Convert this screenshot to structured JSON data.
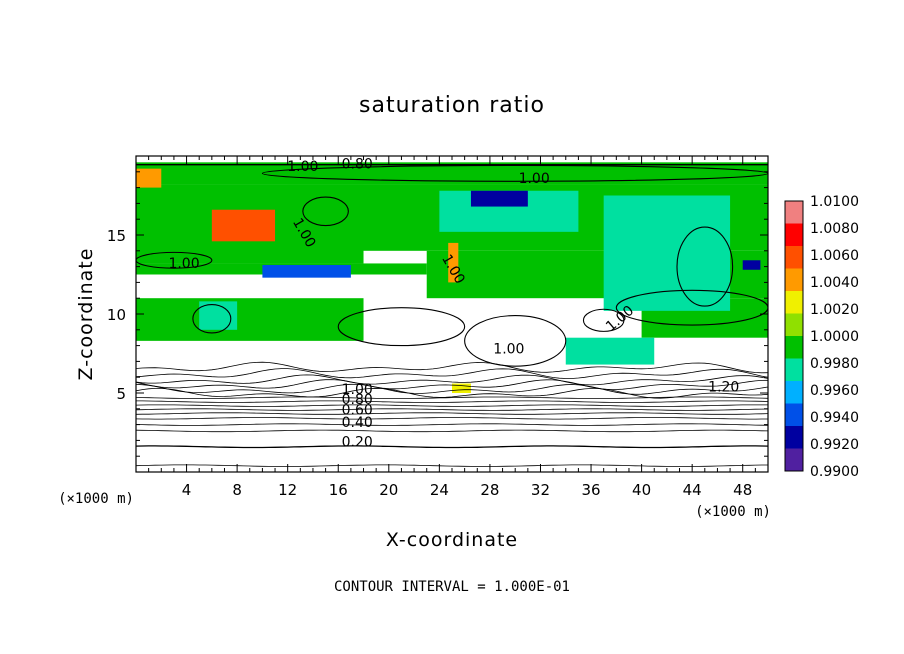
{
  "chart_data": {
    "type": "heatmap",
    "title": "saturation ratio",
    "xlabel": "X-coordinate",
    "ylabel": "Z-coordinate",
    "x_unit": "(×1000 m)",
    "z_unit": "(×1000 m)",
    "xlim": [
      0,
      50
    ],
    "ylim": [
      0,
      20
    ],
    "x_ticks": [
      4,
      8,
      12,
      16,
      20,
      24,
      28,
      32,
      36,
      40,
      44,
      48
    ],
    "y_ticks": [
      5,
      10,
      15
    ],
    "contour_interval_text": "CONTOUR INTERVAL = 1.000E-01",
    "colorbar": {
      "labels": [
        "1.0100",
        "1.0080",
        "1.0060",
        "1.0040",
        "1.0020",
        "1.0000",
        "0.9980",
        "0.9960",
        "0.9940",
        "0.9920",
        "0.9900"
      ],
      "colors": [
        "#f08080",
        "#ff0000",
        "#ff5000",
        "#ff9a00",
        "#f0f000",
        "#90e000",
        "#00c000",
        "#00e0a0",
        "#00b0ff",
        "#0050e8",
        "#0000a0",
        "#5020a0"
      ]
    },
    "contour_labels": [
      "1.00",
      "0.80",
      "1.00",
      "1.00",
      "1.00",
      "1.00",
      "1.00",
      "1.00",
      "1.20",
      "1.00",
      "0.80",
      "0.60",
      "0.40",
      "0.20"
    ],
    "regions": [
      {
        "x0": 0,
        "x1": 50,
        "y0": 18.2,
        "y1": 19.6,
        "level": "1.0000"
      },
      {
        "x0": 0,
        "x1": 18,
        "y0": 13.2,
        "y1": 18.2,
        "level": "1.0000"
      },
      {
        "x0": 12,
        "x1": 50,
        "y0": 14.0,
        "y1": 18.2,
        "level": "1.0000"
      },
      {
        "x0": 23,
        "x1": 50,
        "y0": 11.0,
        "y1": 14.0,
        "level": "1.0000"
      },
      {
        "x0": 0,
        "x1": 23,
        "y0": 12.5,
        "y1": 13.2,
        "level": "1.0000"
      },
      {
        "x0": 0,
        "x1": 18,
        "y0": 8.3,
        "y1": 11.0,
        "level": "1.0000"
      },
      {
        "x0": 40,
        "x1": 50,
        "y0": 8.5,
        "y1": 11.0,
        "level": "1.0000"
      },
      {
        "x0": 34,
        "x1": 41,
        "y0": 6.8,
        "y1": 8.5,
        "level": "0.9980"
      },
      {
        "x0": 37,
        "x1": 47,
        "y0": 10.2,
        "y1": 17.5,
        "level": "0.9980"
      },
      {
        "x0": 24,
        "x1": 35,
        "y0": 15.2,
        "y1": 17.8,
        "level": "0.9980"
      },
      {
        "x0": 5,
        "x1": 8,
        "y0": 9.0,
        "y1": 10.8,
        "level": "0.9980"
      },
      {
        "x0": 6,
        "x1": 11,
        "y0": 14.6,
        "y1": 16.6,
        "level": "1.0080"
      },
      {
        "x0": 0,
        "x1": 2,
        "y0": 18.0,
        "y1": 19.2,
        "level": "1.0060"
      },
      {
        "x0": 24.7,
        "x1": 25.5,
        "y0": 12.0,
        "y1": 14.5,
        "level": "1.0060"
      },
      {
        "x0": 10,
        "x1": 17,
        "y0": 12.3,
        "y1": 13.1,
        "level": "0.9940"
      },
      {
        "x0": 26.5,
        "x1": 31,
        "y0": 16.8,
        "y1": 17.8,
        "level": "0.9920"
      },
      {
        "x0": 48,
        "x1": 49.4,
        "y0": 12.8,
        "y1": 13.4,
        "level": "0.9920"
      },
      {
        "x0": 25,
        "x1": 26.5,
        "y0": 5.0,
        "y1": 5.6,
        "level": "1.0040"
      }
    ]
  }
}
